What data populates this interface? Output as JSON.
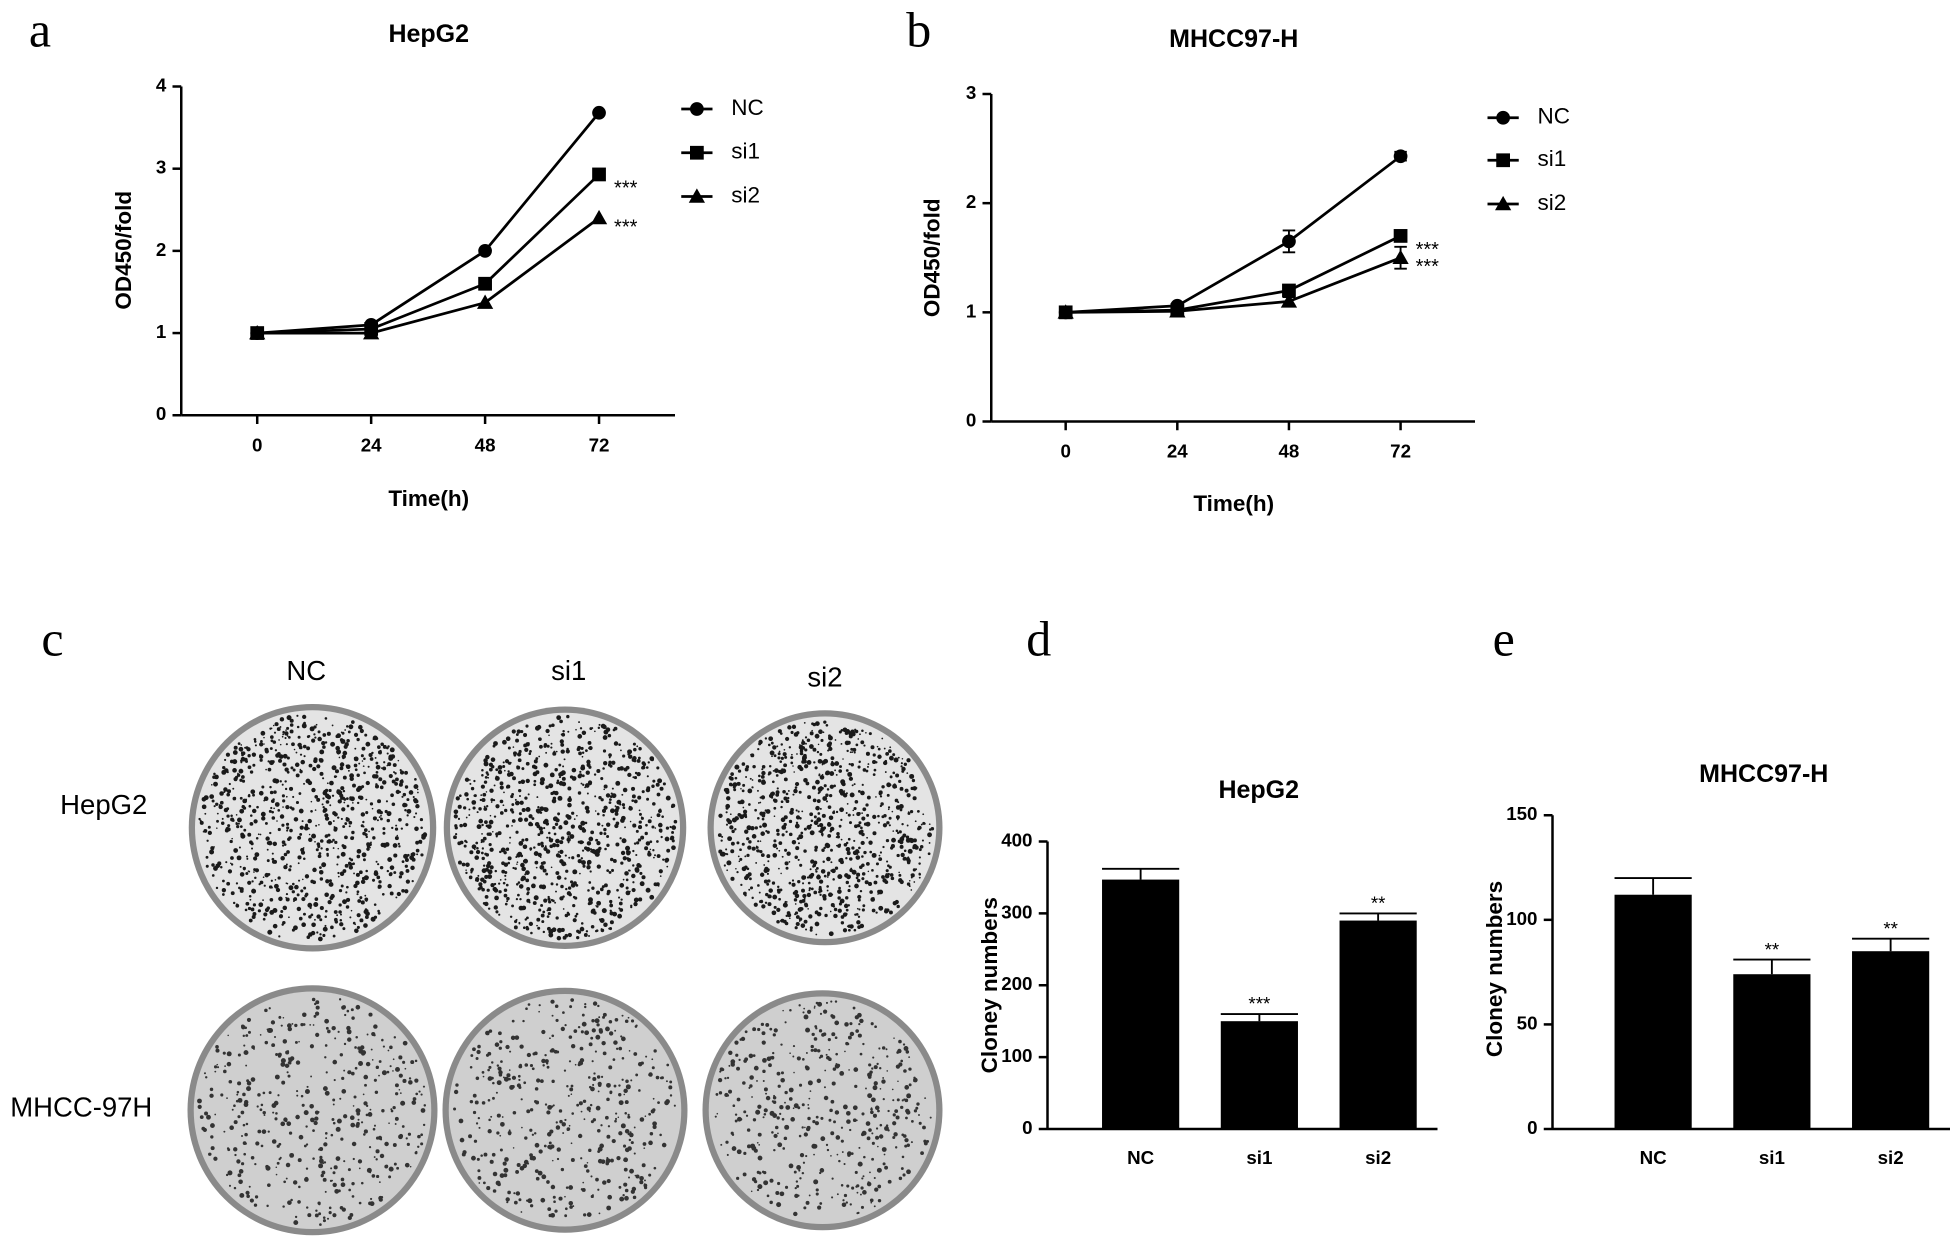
{
  "chart_data": [
    {
      "type": "line",
      "label": "a",
      "title": "HepG2",
      "x_label": "Time(h)",
      "y_label": "OD450/fold",
      "x": [
        0,
        24,
        48,
        72
      ],
      "xlim": [
        -16,
        88
      ],
      "xticks": [
        0,
        24,
        48,
        72
      ],
      "ylim": [
        0,
        4
      ],
      "yticks": [
        0,
        1,
        2,
        3,
        4
      ],
      "series": [
        {
          "name": "NC",
          "color": "#000000",
          "marker": "circle",
          "values": [
            1,
            1.1,
            2.0,
            3.68
          ]
        },
        {
          "name": "si1",
          "color": "#000000",
          "marker": "square",
          "values": [
            1,
            1.05,
            1.6,
            2.93
          ],
          "significance": "***"
        },
        {
          "name": "si2",
          "color": "#000000",
          "marker": "triangle",
          "values": [
            1,
            1.0,
            1.37,
            2.4
          ],
          "significance": "***"
        }
      ]
    },
    {
      "type": "line",
      "label": "b",
      "title": "MHCC97-H",
      "x_label": "Time(h)",
      "y_label": "OD450/fold",
      "x": [
        0,
        24,
        48,
        72
      ],
      "xlim": [
        -16,
        88
      ],
      "xticks": [
        0,
        24,
        48,
        72
      ],
      "ylim": [
        0,
        3
      ],
      "yticks": [
        0,
        1,
        2,
        3
      ],
      "series": [
        {
          "name": "NC",
          "color": "#000000",
          "marker": "circle",
          "values": [
            1,
            1.06,
            1.65,
            2.43
          ],
          "errors": [
            0.02,
            0.02,
            0.1,
            0.04
          ]
        },
        {
          "name": "si1",
          "color": "#000000",
          "marker": "square",
          "values": [
            1,
            1.02,
            1.2,
            1.7
          ],
          "errors": [
            0.02,
            0.02,
            0.03,
            0.04
          ],
          "significance": "***"
        },
        {
          "name": "si2",
          "color": "#000000",
          "marker": "triangle",
          "values": [
            1,
            1.01,
            1.1,
            1.5
          ],
          "errors": [
            0.02,
            0.02,
            0.04,
            0.1
          ],
          "significance": "***"
        }
      ]
    },
    {
      "type": "bar",
      "label": "d",
      "title": "HepG2",
      "y_label": "Cloney numbers",
      "categories": [
        "NC",
        "si1",
        "si2"
      ],
      "values": [
        347,
        150,
        290
      ],
      "errors": [
        15,
        10,
        10
      ],
      "annotations": [
        null,
        "***",
        "**"
      ],
      "color": "#000000",
      "ylim": [
        0,
        400
      ],
      "yticks": [
        0,
        100,
        200,
        300,
        400
      ]
    },
    {
      "type": "bar",
      "label": "e",
      "title": "MHCC97-H",
      "y_label": "Cloney numbers",
      "categories": [
        "NC",
        "si1",
        "si2"
      ],
      "values": [
        112,
        74,
        85
      ],
      "errors": [
        8,
        7,
        6
      ],
      "annotations": [
        null,
        "**",
        "**"
      ],
      "color": "#000000",
      "ylim": [
        0,
        150
      ],
      "yticks": [
        0,
        50,
        100,
        150
      ]
    }
  ],
  "panel_c": {
    "label": "c",
    "columns": [
      "NC",
      "si1",
      "si2"
    ],
    "rows": [
      "HepG2",
      "MHCC-97H"
    ]
  }
}
